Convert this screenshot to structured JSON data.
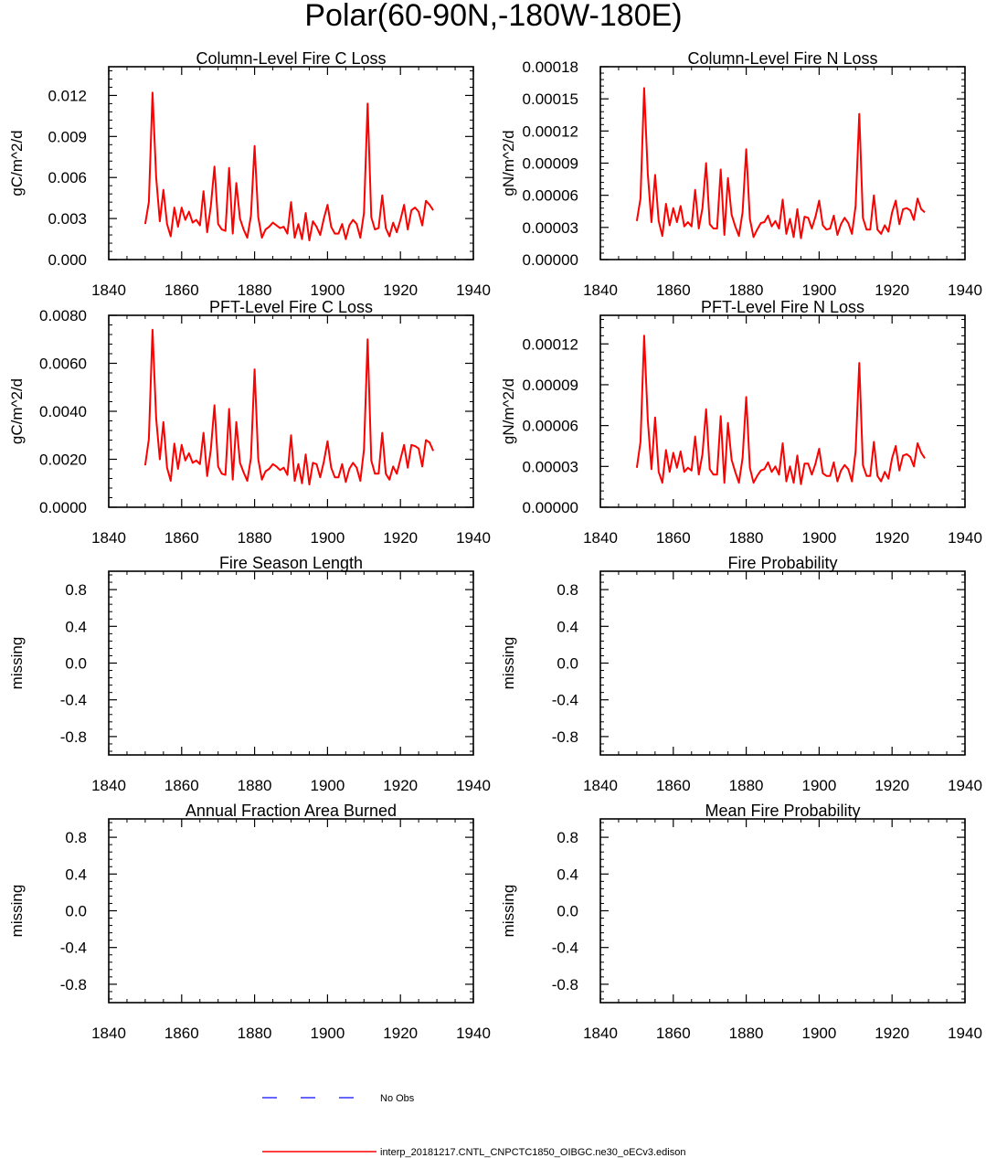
{
  "figure": {
    "title": "Polar(60-90N,-180W-180E)",
    "legend": {
      "entries": [
        {
          "label": "No Obs",
          "color": "#3333ff",
          "style": "dashed"
        },
        {
          "label": "interp_20181217.CNTL_CNPCTC1850_OIBGC.ne30_oECv3.edison",
          "color": "#ff0000",
          "style": "solid"
        }
      ]
    }
  },
  "chart_data": [
    {
      "type": "line",
      "title": "Column-Level Fire C Loss",
      "xlabel": "",
      "ylabel": "gC/m^2/d",
      "xlim": [
        1840,
        1940
      ],
      "ylim": [
        0,
        0.0141
      ],
      "xticks": [
        1840,
        1860,
        1880,
        1900,
        1920,
        1940
      ],
      "xtick_labels": [
        "1840",
        "1860",
        "1880",
        "1900",
        "1920",
        "1940"
      ],
      "yticks": [
        0,
        0.003,
        0.006,
        0.009,
        0.012
      ],
      "ytick_labels": [
        "0.000",
        "0.003",
        "0.006",
        "0.009",
        "0.012"
      ],
      "series": [
        {
          "name": "interp_20181217.CNTL_CNPCTC1850_OIBGC.ne30_oECv3.edison",
          "color": "#ff0000",
          "x": [
            1850,
            1851,
            1852,
            1853,
            1854,
            1855,
            1856,
            1857,
            1858,
            1859,
            1860,
            1861,
            1862,
            1863,
            1864,
            1865,
            1866,
            1867,
            1868,
            1869,
            1870,
            1871,
            1872,
            1873,
            1874,
            1875,
            1876,
            1877,
            1878,
            1879,
            1880,
            1881,
            1882,
            1883,
            1884,
            1885,
            1886,
            1887,
            1888,
            1889,
            1890,
            1891,
            1892,
            1893,
            1894,
            1895,
            1896,
            1897,
            1898,
            1899,
            1900,
            1901,
            1902,
            1903,
            1904,
            1905,
            1906,
            1907,
            1908,
            1909,
            1910,
            1911,
            1912,
            1913,
            1914,
            1915,
            1916,
            1917,
            1918,
            1919,
            1920,
            1921,
            1922,
            1923,
            1924,
            1925,
            1926,
            1927,
            1928,
            1929
          ],
          "values": [
            0.0026,
            0.0042,
            0.0122,
            0.006,
            0.0028,
            0.0051,
            0.0026,
            0.0017,
            0.0038,
            0.0024,
            0.0038,
            0.0029,
            0.0035,
            0.0027,
            0.0029,
            0.0025,
            0.005,
            0.002,
            0.0039,
            0.0068,
            0.0026,
            0.0022,
            0.0021,
            0.0067,
            0.0019,
            0.0056,
            0.003,
            0.0022,
            0.0016,
            0.0032,
            0.0083,
            0.0031,
            0.0016,
            0.0022,
            0.0024,
            0.0027,
            0.0025,
            0.0023,
            0.0024,
            0.0019,
            0.0042,
            0.0016,
            0.0026,
            0.0015,
            0.0034,
            0.0014,
            0.0028,
            0.0024,
            0.0018,
            0.003,
            0.004,
            0.0024,
            0.0019,
            0.0019,
            0.0026,
            0.0015,
            0.0025,
            0.0029,
            0.0026,
            0.0016,
            0.0034,
            0.0114,
            0.0031,
            0.0022,
            0.0023,
            0.0047,
            0.0023,
            0.0017,
            0.0027,
            0.002,
            0.0029,
            0.004,
            0.0022,
            0.0036,
            0.0038,
            0.0035,
            0.0025,
            0.0043,
            0.004,
            0.0036
          ]
        }
      ]
    },
    {
      "type": "line",
      "title": "Column-Level Fire N Loss",
      "xlabel": "",
      "ylabel": "gN/m^2/d",
      "xlim": [
        1840,
        1940
      ],
      "ylim": [
        0,
        0.00018
      ],
      "xticks": [
        1840,
        1860,
        1880,
        1900,
        1920,
        1940
      ],
      "xtick_labels": [
        "1840",
        "1860",
        "1880",
        "1900",
        "1920",
        "1940"
      ],
      "yticks": [
        0,
        3e-05,
        6e-05,
        9e-05,
        0.00012,
        0.00015,
        0.00018
      ],
      "ytick_labels": [
        "0.00000",
        "0.00003",
        "0.00006",
        "0.00009",
        "0.00012",
        "0.00015",
        "0.00018"
      ],
      "series": [
        {
          "name": "interp_20181217.CNTL_CNPCTC1850_OIBGC.ne30_oECv3.edison",
          "color": "#ff0000",
          "x": [
            1850,
            1851,
            1852,
            1853,
            1854,
            1855,
            1856,
            1857,
            1858,
            1859,
            1860,
            1861,
            1862,
            1863,
            1864,
            1865,
            1866,
            1867,
            1868,
            1869,
            1870,
            1871,
            1872,
            1873,
            1874,
            1875,
            1876,
            1877,
            1878,
            1879,
            1880,
            1881,
            1882,
            1883,
            1884,
            1885,
            1886,
            1887,
            1888,
            1889,
            1890,
            1891,
            1892,
            1893,
            1894,
            1895,
            1896,
            1897,
            1898,
            1899,
            1900,
            1901,
            1902,
            1903,
            1904,
            1905,
            1906,
            1907,
            1908,
            1909,
            1910,
            1911,
            1912,
            1913,
            1914,
            1915,
            1916,
            1917,
            1918,
            1919,
            1920,
            1921,
            1922,
            1923,
            1924,
            1925,
            1926,
            1927,
            1928,
            1929
          ],
          "values": [
            3.6e-05,
            5.7e-05,
            0.00016,
            8e-05,
            3.5e-05,
            7.9e-05,
            3.6e-05,
            2.2e-05,
            5.2e-05,
            3.2e-05,
            4.8e-05,
            3.5e-05,
            5e-05,
            3.1e-05,
            3.5e-05,
            3.1e-05,
            6.5e-05,
            2.9e-05,
            4.8e-05,
            9e-05,
            3.3e-05,
            2.9e-05,
            2.9e-05,
            8.4e-05,
            2.3e-05,
            7.6e-05,
            4.2e-05,
            3.1e-05,
            2.2e-05,
            4.4e-05,
            0.000103,
            3.8e-05,
            2.1e-05,
            2.8e-05,
            3.4e-05,
            3.5e-05,
            4.1e-05,
            3.1e-05,
            3.6e-05,
            2.9e-05,
            5.6e-05,
            2.4e-05,
            3.8e-05,
            2.1e-05,
            4.7e-05,
            2e-05,
            4e-05,
            3.9e-05,
            2.9e-05,
            4e-05,
            5.5e-05,
            3.2e-05,
            2.8e-05,
            2.9e-05,
            4.1e-05,
            2.3e-05,
            3.3e-05,
            3.9e-05,
            3.4e-05,
            2.4e-05,
            5e-05,
            0.000136,
            3.9e-05,
            2.8e-05,
            2.8e-05,
            6e-05,
            2.8e-05,
            2.4e-05,
            3.2e-05,
            2.6e-05,
            4.4e-05,
            5.5e-05,
            3.3e-05,
            4.7e-05,
            4.8e-05,
            4.6e-05,
            3.7e-05,
            5.7e-05,
            4.7e-05,
            4.4e-05
          ]
        }
      ]
    },
    {
      "type": "line",
      "title": "PFT-Level Fire C Loss",
      "xlabel": "",
      "ylabel": "gC/m^2/d",
      "xlim": [
        1840,
        1940
      ],
      "ylim": [
        0,
        0.008
      ],
      "xticks": [
        1840,
        1860,
        1880,
        1900,
        1920,
        1940
      ],
      "xtick_labels": [
        "1840",
        "1860",
        "1880",
        "1900",
        "1920",
        "1940"
      ],
      "yticks": [
        0,
        0.002,
        0.004,
        0.006,
        0.008
      ],
      "ytick_labels": [
        "0.0000",
        "0.0020",
        "0.0040",
        "0.0060",
        "0.0080"
      ],
      "series": [
        {
          "name": "interp_20181217.CNTL_CNPCTC1850_OIBGC.ne30_oECv3.edison",
          "color": "#ff0000",
          "x": [
            1850,
            1851,
            1852,
            1853,
            1854,
            1855,
            1856,
            1857,
            1858,
            1859,
            1860,
            1861,
            1862,
            1863,
            1864,
            1865,
            1866,
            1867,
            1868,
            1869,
            1870,
            1871,
            1872,
            1873,
            1874,
            1875,
            1876,
            1877,
            1878,
            1879,
            1880,
            1881,
            1882,
            1883,
            1884,
            1885,
            1886,
            1887,
            1888,
            1889,
            1890,
            1891,
            1892,
            1893,
            1894,
            1895,
            1896,
            1897,
            1898,
            1899,
            1900,
            1901,
            1902,
            1903,
            1904,
            1905,
            1906,
            1907,
            1908,
            1909,
            1910,
            1911,
            1912,
            1913,
            1914,
            1915,
            1916,
            1917,
            1918,
            1919,
            1920,
            1921,
            1922,
            1923,
            1924,
            1925,
            1926,
            1927,
            1928,
            1929
          ],
          "values": [
            0.00175,
            0.00285,
            0.0074,
            0.0037,
            0.002,
            0.00355,
            0.00165,
            0.0011,
            0.00265,
            0.0016,
            0.0026,
            0.00195,
            0.00225,
            0.00185,
            0.00195,
            0.0018,
            0.0031,
            0.0013,
            0.0024,
            0.00425,
            0.0017,
            0.0014,
            0.00135,
            0.0041,
            0.00115,
            0.00355,
            0.00185,
            0.00145,
            0.0011,
            0.00205,
            0.00575,
            0.002,
            0.00115,
            0.0015,
            0.0016,
            0.0018,
            0.0017,
            0.00155,
            0.00165,
            0.00135,
            0.003,
            0.0011,
            0.0018,
            0.001,
            0.0022,
            0.00095,
            0.00185,
            0.0018,
            0.00125,
            0.0019,
            0.00275,
            0.00165,
            0.00125,
            0.00125,
            0.0018,
            0.00105,
            0.0016,
            0.00185,
            0.00165,
            0.0011,
            0.0024,
            0.007,
            0.00195,
            0.0014,
            0.0014,
            0.0031,
            0.0014,
            0.00115,
            0.0017,
            0.0014,
            0.002,
            0.0026,
            0.00165,
            0.0026,
            0.00255,
            0.00245,
            0.0017,
            0.0028,
            0.0027,
            0.00235
          ]
        }
      ]
    },
    {
      "type": "line",
      "title": "PFT-Level Fire N Loss",
      "xlabel": "",
      "ylabel": "gN/m^2/d",
      "xlim": [
        1840,
        1940
      ],
      "ylim": [
        0,
        0.000141
      ],
      "xticks": [
        1840,
        1860,
        1880,
        1900,
        1920,
        1940
      ],
      "xtick_labels": [
        "1840",
        "1860",
        "1880",
        "1900",
        "1920",
        "1940"
      ],
      "yticks": [
        0,
        3e-05,
        6e-05,
        9e-05,
        0.00012
      ],
      "ytick_labels": [
        "0.00000",
        "0.00003",
        "0.00006",
        "0.00009",
        "0.00012"
      ],
      "series": [
        {
          "name": "interp_20181217.CNTL_CNPCTC1850_OIBGC.ne30_oECv3.edison",
          "color": "#ff0000",
          "x": [
            1850,
            1851,
            1852,
            1853,
            1854,
            1855,
            1856,
            1857,
            1858,
            1859,
            1860,
            1861,
            1862,
            1863,
            1864,
            1865,
            1866,
            1867,
            1868,
            1869,
            1870,
            1871,
            1872,
            1873,
            1874,
            1875,
            1876,
            1877,
            1878,
            1879,
            1880,
            1881,
            1882,
            1883,
            1884,
            1885,
            1886,
            1887,
            1888,
            1889,
            1890,
            1891,
            1892,
            1893,
            1894,
            1895,
            1896,
            1897,
            1898,
            1899,
            1900,
            1901,
            1902,
            1903,
            1904,
            1905,
            1906,
            1907,
            1908,
            1909,
            1910,
            1911,
            1912,
            1913,
            1914,
            1915,
            1916,
            1917,
            1918,
            1919,
            1920,
            1921,
            1922,
            1923,
            1924,
            1925,
            1926,
            1927,
            1928,
            1929
          ],
          "values": [
            2.9e-05,
            4.8e-05,
            0.000126,
            6.4e-05,
            2.8e-05,
            6.6e-05,
            2.6e-05,
            1.8e-05,
            4.2e-05,
            2.6e-05,
            4e-05,
            2.9e-05,
            4.1e-05,
            2.6e-05,
            2.9e-05,
            2.7e-05,
            5.2e-05,
            2.4e-05,
            3.9e-05,
            7.2e-05,
            2.8e-05,
            2.4e-05,
            2.4e-05,
            6.7e-05,
            1.8e-05,
            6.2e-05,
            3.5e-05,
            2.6e-05,
            1.8e-05,
            3.6e-05,
            8.1e-05,
            2.9e-05,
            1.8e-05,
            2.3e-05,
            2.7e-05,
            2.8e-05,
            3.3e-05,
            2.6e-05,
            3e-05,
            2.4e-05,
            4.7e-05,
            1.9e-05,
            3e-05,
            1.8e-05,
            3.8e-05,
            1.7e-05,
            3.2e-05,
            3.2e-05,
            2.4e-05,
            3.2e-05,
            4.3e-05,
            2.5e-05,
            2.3e-05,
            2.3e-05,
            3.3e-05,
            1.9e-05,
            2.7e-05,
            3.1e-05,
            2.8e-05,
            1.9e-05,
            4.1e-05,
            0.000106,
            3.1e-05,
            2.3e-05,
            2.3e-05,
            4.8e-05,
            2.3e-05,
            1.9e-05,
            2.6e-05,
            2.1e-05,
            3.6e-05,
            4.5e-05,
            2.7e-05,
            3.8e-05,
            3.9e-05,
            3.7e-05,
            3e-05,
            4.7e-05,
            4e-05,
            3.6e-05
          ]
        }
      ]
    },
    {
      "type": "line",
      "title": "Fire Season Length",
      "xlabel": "",
      "ylabel": "missing",
      "xlim": [
        1840,
        1940
      ],
      "ylim": [
        -1,
        1
      ],
      "xticks": [
        1840,
        1860,
        1880,
        1900,
        1920,
        1940
      ],
      "xtick_labels": [
        "1840",
        "1860",
        "1880",
        "1900",
        "1920",
        "1940"
      ],
      "yticks": [
        -0.8,
        -0.4,
        0,
        0.4,
        0.8
      ],
      "ytick_labels": [
        "-0.8",
        "-0.4",
        "0.0",
        "0.4",
        "0.8"
      ],
      "series": []
    },
    {
      "type": "line",
      "title": "Fire Probability",
      "xlabel": "",
      "ylabel": "missing",
      "xlim": [
        1840,
        1940
      ],
      "ylim": [
        -1,
        1
      ],
      "xticks": [
        1840,
        1860,
        1880,
        1900,
        1920,
        1940
      ],
      "xtick_labels": [
        "1840",
        "1860",
        "1880",
        "1900",
        "1920",
        "1940"
      ],
      "yticks": [
        -0.8,
        -0.4,
        0,
        0.4,
        0.8
      ],
      "ytick_labels": [
        "-0.8",
        "-0.4",
        "0.0",
        "0.4",
        "0.8"
      ],
      "series": []
    },
    {
      "type": "line",
      "title": "Annual Fraction Area Burned",
      "xlabel": "",
      "ylabel": "missing",
      "xlim": [
        1840,
        1940
      ],
      "ylim": [
        -1,
        1
      ],
      "xticks": [
        1840,
        1860,
        1880,
        1900,
        1920,
        1940
      ],
      "xtick_labels": [
        "1840",
        "1860",
        "1880",
        "1900",
        "1920",
        "1940"
      ],
      "yticks": [
        -0.8,
        -0.4,
        0,
        0.4,
        0.8
      ],
      "ytick_labels": [
        "-0.8",
        "-0.4",
        "0.0",
        "0.4",
        "0.8"
      ],
      "series": []
    },
    {
      "type": "line",
      "title": "Mean Fire Probability",
      "xlabel": "",
      "ylabel": "missing",
      "xlim": [
        1840,
        1940
      ],
      "ylim": [
        -1,
        1
      ],
      "xticks": [
        1840,
        1860,
        1880,
        1900,
        1920,
        1940
      ],
      "xtick_labels": [
        "1840",
        "1860",
        "1880",
        "1900",
        "1920",
        "1940"
      ],
      "yticks": [
        -0.8,
        -0.4,
        0,
        0.4,
        0.8
      ],
      "ytick_labels": [
        "-0.8",
        "-0.4",
        "0.0",
        "0.4",
        "0.8"
      ],
      "series": []
    }
  ]
}
